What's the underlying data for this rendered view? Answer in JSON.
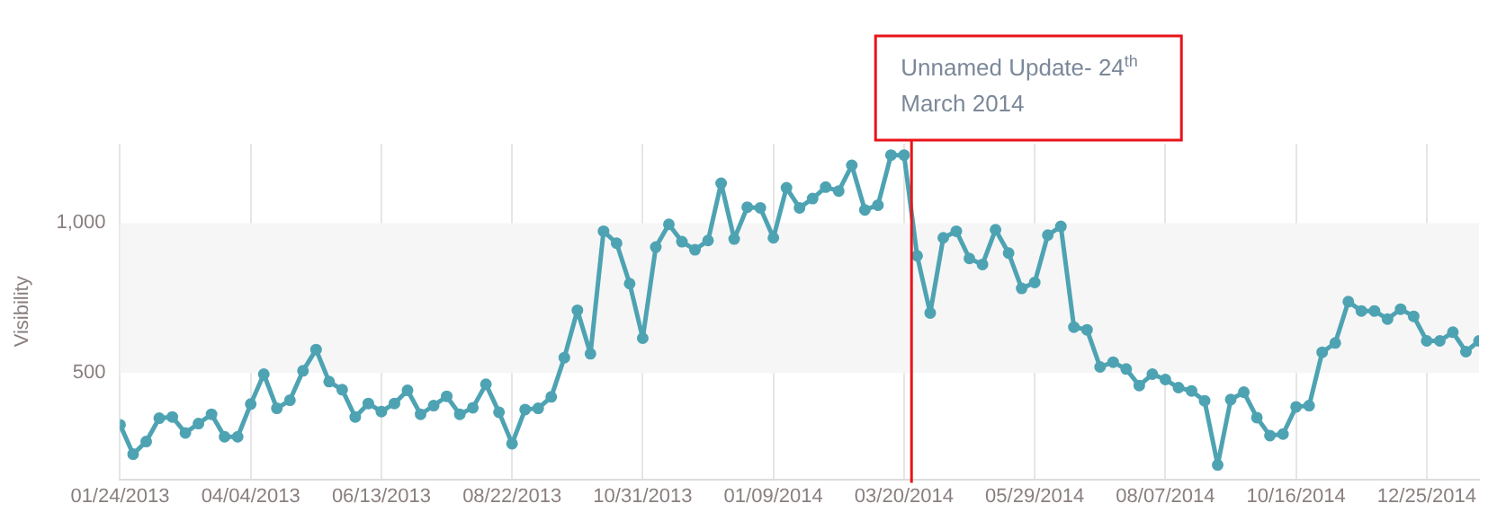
{
  "chart_data": {
    "type": "line",
    "ylabel": "Visibility",
    "x": [
      "2013-01-24",
      "2013-01-31",
      "2013-02-07",
      "2013-02-14",
      "2013-02-21",
      "2013-02-28",
      "2013-03-07",
      "2013-03-14",
      "2013-03-21",
      "2013-03-28",
      "2013-04-04",
      "2013-04-11",
      "2013-04-18",
      "2013-04-25",
      "2013-05-02",
      "2013-05-09",
      "2013-05-16",
      "2013-05-23",
      "2013-05-30",
      "2013-06-06",
      "2013-06-13",
      "2013-06-20",
      "2013-06-27",
      "2013-07-04",
      "2013-07-11",
      "2013-07-18",
      "2013-07-25",
      "2013-08-01",
      "2013-08-08",
      "2013-08-15",
      "2013-08-22",
      "2013-08-29",
      "2013-09-05",
      "2013-09-12",
      "2013-09-19",
      "2013-09-26",
      "2013-10-03",
      "2013-10-10",
      "2013-10-17",
      "2013-10-24",
      "2013-10-31",
      "2013-11-07",
      "2013-11-14",
      "2013-11-21",
      "2013-11-28",
      "2013-12-05",
      "2013-12-12",
      "2013-12-19",
      "2013-12-26",
      "2014-01-02",
      "2014-01-09",
      "2014-01-16",
      "2014-01-23",
      "2014-01-30",
      "2014-02-06",
      "2014-02-13",
      "2014-02-20",
      "2014-02-27",
      "2014-03-06",
      "2014-03-13",
      "2014-03-20",
      "2014-03-27",
      "2014-04-03",
      "2014-04-10",
      "2014-04-17",
      "2014-04-24",
      "2014-05-01",
      "2014-05-08",
      "2014-05-15",
      "2014-05-22",
      "2014-05-29",
      "2014-06-05",
      "2014-06-12",
      "2014-06-19",
      "2014-06-26",
      "2014-07-03",
      "2014-07-10",
      "2014-07-17",
      "2014-07-24",
      "2014-07-31",
      "2014-08-07",
      "2014-08-14",
      "2014-08-21",
      "2014-08-28",
      "2014-09-04",
      "2014-09-11",
      "2014-09-18",
      "2014-09-25",
      "2014-10-02",
      "2014-10-09",
      "2014-10-16",
      "2014-10-23",
      "2014-10-30",
      "2014-11-06",
      "2014-11-13",
      "2014-11-20",
      "2014-11-27",
      "2014-12-04",
      "2014-12-11",
      "2014-12-18",
      "2014-12-25",
      "2015-01-01",
      "2015-01-08",
      "2015-01-15",
      "2015-01-22"
    ],
    "series": [
      {
        "color": "#4ea3b3",
        "values": [
          327,
          229,
          271,
          349,
          353,
          300,
          331,
          362,
          287,
          287,
          396,
          496,
          382,
          409,
          507,
          578,
          471,
          444,
          353,
          398,
          371,
          398,
          442,
          362,
          391,
          422,
          362,
          384,
          462,
          369,
          264,
          378,
          382,
          420,
          551,
          709,
          564,
          973,
          933,
          798,
          616,
          920,
          996,
          938,
          911,
          942,
          1133,
          947,
          1053,
          1051,
          951,
          1118,
          1051,
          1082,
          1120,
          1107,
          1193,
          1044,
          1060,
          1227,
          1227,
          891,
          700,
          951,
          973,
          882,
          862,
          978,
          900,
          782,
          802,
          960,
          989,
          653,
          644,
          520,
          536,
          513,
          458,
          496,
          478,
          451,
          440,
          407,
          193,
          411,
          436,
          351,
          291,
          296,
          387,
          391,
          569,
          600,
          738,
          707,
          707,
          680,
          713,
          689,
          607,
          607,
          636,
          571,
          607
        ]
      }
    ],
    "xlim": [
      "2013-01-24",
      "2015-01-22"
    ],
    "xticks": [
      {
        "value": "2013-01-24",
        "label": "01/24/2013"
      },
      {
        "value": "2013-04-04",
        "label": "04/04/2013"
      },
      {
        "value": "2013-06-13",
        "label": "06/13/2013"
      },
      {
        "value": "2013-08-22",
        "label": "08/22/2013"
      },
      {
        "value": "2013-10-31",
        "label": "10/31/2013"
      },
      {
        "value": "2014-01-09",
        "label": "01/09/2014"
      },
      {
        "value": "2014-03-20",
        "label": "03/20/2014"
      },
      {
        "value": "2014-05-29",
        "label": "05/29/2014"
      },
      {
        "value": "2014-08-07",
        "label": "08/07/2014"
      },
      {
        "value": "2014-10-16",
        "label": "10/16/2014"
      },
      {
        "value": "2014-12-25",
        "label": "12/25/2014"
      }
    ],
    "ylim": [
      145,
      1265
    ],
    "yticks": [
      {
        "value": 500,
        "label": "500"
      },
      {
        "value": 1000,
        "label": "1,000"
      }
    ],
    "bands": [
      {
        "axis": "y",
        "from": 500,
        "to": 1000,
        "color": "#f6f6f6"
      }
    ],
    "ref_lines": [
      {
        "axis": "x",
        "value": "2014-03-24",
        "label": "Unnamed Update- 24$^{th}$ March 2014",
        "color": "#e8141a"
      }
    ],
    "grid": "x",
    "marker": "circle",
    "line_style": "solid",
    "legend": false
  }
}
